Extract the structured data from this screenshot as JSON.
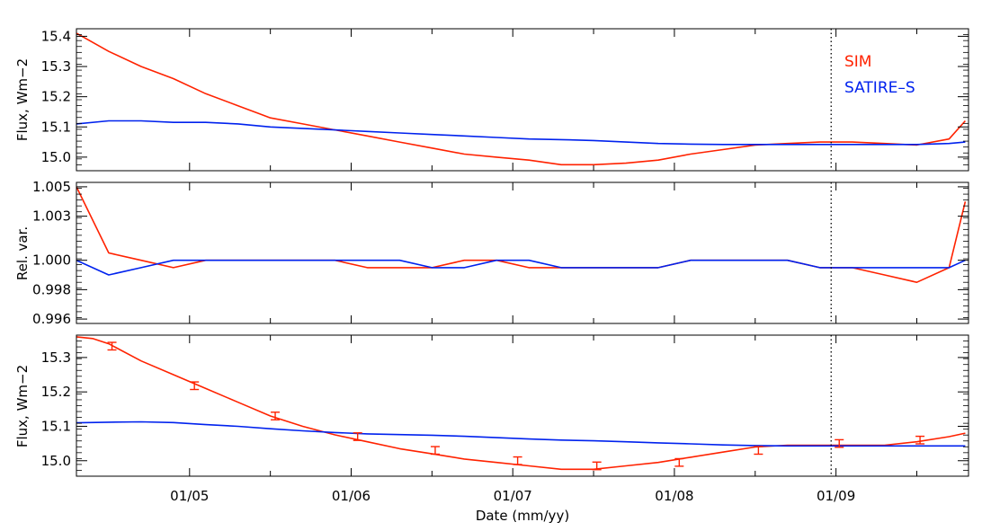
{
  "colors": {
    "sim": "#ff2200",
    "satire": "#0022ee",
    "axis": "#000000",
    "marker": "#000000"
  },
  "xlabel": "Date (mm/yy)",
  "x_tick_labels": [
    "01/05",
    "01/06",
    "01/07",
    "01/08",
    "01/09"
  ],
  "marker_label_text": "01/09",
  "chart_data": [
    {
      "type": "line",
      "title": "",
      "xlabel": "",
      "ylabel": "Flux, Wm−2",
      "ylim": [
        14.955,
        15.425
      ],
      "yticks": [
        15.0,
        15.1,
        15.2,
        15.3,
        15.4
      ],
      "ytick_labels": [
        "15.0",
        "15.1",
        "15.2",
        "15.3",
        "15.4"
      ],
      "legend": {
        "placement": "top-right",
        "entries": [
          "SIM",
          "SATIRE–S"
        ]
      },
      "series": [
        {
          "name": "SIM",
          "color": "#ff2200",
          "x": [
            2004.3,
            2004.5,
            2004.7,
            2004.9,
            2005.1,
            2005.3,
            2005.5,
            2005.7,
            2005.9,
            2006.1,
            2006.3,
            2006.5,
            2006.7,
            2006.9,
            2007.1,
            2007.3,
            2007.5,
            2007.7,
            2007.9,
            2008.1,
            2008.3,
            2008.5,
            2008.7,
            2008.9,
            2009.1,
            2009.3,
            2009.5,
            2009.7,
            2009.8
          ],
          "y": [
            15.41,
            15.35,
            15.3,
            15.26,
            15.21,
            15.17,
            15.13,
            15.11,
            15.09,
            15.07,
            15.05,
            15.03,
            15.01,
            15.0,
            14.99,
            14.975,
            14.975,
            14.98,
            14.99,
            15.01,
            15.025,
            15.04,
            15.045,
            15.05,
            15.05,
            15.045,
            15.04,
            15.06,
            15.12
          ]
        },
        {
          "name": "SATIRE–S",
          "color": "#0022ee",
          "x": [
            2004.3,
            2004.5,
            2004.7,
            2004.9,
            2005.1,
            2005.3,
            2005.5,
            2005.7,
            2005.9,
            2006.1,
            2006.3,
            2006.5,
            2006.7,
            2006.9,
            2007.1,
            2007.3,
            2007.5,
            2007.7,
            2007.9,
            2008.1,
            2008.3,
            2008.5,
            2008.7,
            2008.9,
            2009.1,
            2009.3,
            2009.5,
            2009.7,
            2009.8
          ],
          "y": [
            15.11,
            15.12,
            15.12,
            15.115,
            15.115,
            15.11,
            15.1,
            15.095,
            15.09,
            15.085,
            15.08,
            15.075,
            15.07,
            15.065,
            15.06,
            15.058,
            15.055,
            15.05,
            15.045,
            15.043,
            15.042,
            15.042,
            15.042,
            15.042,
            15.042,
            15.042,
            15.042,
            15.045,
            15.05
          ]
        }
      ]
    },
    {
      "type": "line",
      "title": "",
      "xlabel": "",
      "ylabel": "Rel. var.",
      "ylim": [
        0.9957,
        1.0053
      ],
      "yticks": [
        0.996,
        0.998,
        1.0,
        1.003,
        1.005
      ],
      "ytick_labels": [
        "0.996",
        "0.998",
        "1.000",
        "1.003",
        "1.005"
      ],
      "series": [
        {
          "name": "SIM",
          "color": "#ff2200",
          "x": [
            2004.3,
            2004.5,
            2004.7,
            2004.9,
            2005.1,
            2005.3,
            2005.5,
            2005.7,
            2005.9,
            2006.1,
            2006.3,
            2006.5,
            2006.7,
            2006.9,
            2007.1,
            2007.3,
            2007.5,
            2007.7,
            2007.9,
            2008.1,
            2008.3,
            2008.5,
            2008.7,
            2008.9,
            2009.1,
            2009.3,
            2009.5,
            2009.7,
            2009.8
          ],
          "y": [
            1.005,
            1.0005,
            1.0,
            0.9995,
            1.0,
            1.0,
            1.0,
            1.0,
            1.0,
            0.9995,
            0.9995,
            0.9995,
            1.0,
            1.0,
            0.9995,
            0.9995,
            0.9995,
            0.9995,
            0.9995,
            1.0,
            1.0,
            1.0,
            1.0,
            0.9995,
            0.9995,
            0.999,
            0.9985,
            0.9995,
            1.004
          ]
        },
        {
          "name": "SATIRE–S",
          "color": "#0022ee",
          "x": [
            2004.3,
            2004.5,
            2004.7,
            2004.9,
            2005.1,
            2005.3,
            2005.5,
            2005.7,
            2005.9,
            2006.1,
            2006.3,
            2006.5,
            2006.7,
            2006.9,
            2007.1,
            2007.3,
            2007.5,
            2007.7,
            2007.9,
            2008.1,
            2008.3,
            2008.5,
            2008.7,
            2008.9,
            2009.1,
            2009.3,
            2009.5,
            2009.7,
            2009.8
          ],
          "y": [
            1.0,
            0.999,
            0.9995,
            1.0,
            1.0,
            1.0,
            1.0,
            1.0,
            1.0,
            1.0,
            1.0,
            0.9995,
            0.9995,
            1.0,
            1.0,
            0.9995,
            0.9995,
            0.9995,
            0.9995,
            1.0,
            1.0,
            1.0,
            1.0,
            0.9995,
            0.9995,
            0.9995,
            0.9995,
            0.9995,
            1.0
          ]
        }
      ]
    },
    {
      "type": "line",
      "title": "",
      "xlabel": "Date (mm/yy)",
      "ylabel": "Flux, Wm−2",
      "ylim": [
        14.955,
        15.365
      ],
      "yticks": [
        15.0,
        15.1,
        15.2,
        15.3
      ],
      "ytick_labels": [
        "15.0",
        "15.1",
        "15.2",
        "15.3"
      ],
      "series": [
        {
          "name": "SIM",
          "color": "#ff2200",
          "x": [
            2004.3,
            2004.4,
            2004.5,
            2004.7,
            2004.9,
            2005.1,
            2005.3,
            2005.5,
            2005.7,
            2005.9,
            2006.1,
            2006.3,
            2006.5,
            2006.7,
            2006.9,
            2007.1,
            2007.3,
            2007.5,
            2007.7,
            2007.9,
            2008.1,
            2008.3,
            2008.5,
            2008.7,
            2008.9,
            2009.1,
            2009.3,
            2009.5,
            2009.7,
            2009.8
          ],
          "y": [
            15.36,
            15.355,
            15.34,
            15.29,
            15.25,
            15.21,
            15.17,
            15.13,
            15.1,
            15.075,
            15.055,
            15.035,
            15.02,
            15.005,
            14.995,
            14.985,
            14.975,
            14.975,
            14.985,
            14.995,
            15.01,
            15.025,
            15.04,
            15.045,
            15.045,
            15.045,
            15.045,
            15.055,
            15.07,
            15.08
          ]
        },
        {
          "name": "SATIRE–S",
          "color": "#0022ee",
          "x": [
            2004.3,
            2004.5,
            2004.7,
            2004.9,
            2005.1,
            2005.3,
            2005.5,
            2005.7,
            2005.9,
            2006.1,
            2006.3,
            2006.5,
            2006.7,
            2006.9,
            2007.1,
            2007.3,
            2007.5,
            2007.7,
            2007.9,
            2008.1,
            2008.3,
            2008.5,
            2008.7,
            2008.9,
            2009.1,
            2009.3,
            2009.5,
            2009.7,
            2009.8
          ],
          "y": [
            15.11,
            15.112,
            15.113,
            15.111,
            15.105,
            15.1,
            15.093,
            15.087,
            15.082,
            15.078,
            15.076,
            15.074,
            15.071,
            15.067,
            15.063,
            15.06,
            15.058,
            15.055,
            15.052,
            15.049,
            15.046,
            15.044,
            15.043,
            15.043,
            15.043,
            15.043,
            15.043,
            15.043,
            15.043
          ]
        }
      ],
      "error_bars": {
        "series": "SIM",
        "x": [
          2004.52,
          2005.03,
          2005.53,
          2006.04,
          2006.52,
          2007.03,
          2007.52,
          2008.03,
          2008.52,
          2009.02,
          2009.52
        ],
        "y": [
          15.333,
          15.218,
          15.13,
          15.07,
          15.03,
          15.0,
          14.985,
          14.995,
          15.03,
          15.05,
          15.06
        ],
        "err": [
          0.011,
          0.011,
          0.011,
          0.011,
          0.011,
          0.011,
          0.011,
          0.011,
          0.011,
          0.011,
          0.011
        ]
      }
    }
  ],
  "xaxis": {
    "range": [
      2004.3,
      2009.82
    ],
    "ticks": [
      2005.0,
      2005.5,
      2006.0,
      2006.5,
      2007.0,
      2007.5,
      2008.0,
      2008.5,
      2009.0,
      2009.5
    ],
    "labeled_ticks": [
      2005.0,
      2006.0,
      2007.0,
      2008.0,
      2009.0
    ]
  },
  "marker_line": {
    "x": 2008.97,
    "style": "dotted"
  }
}
